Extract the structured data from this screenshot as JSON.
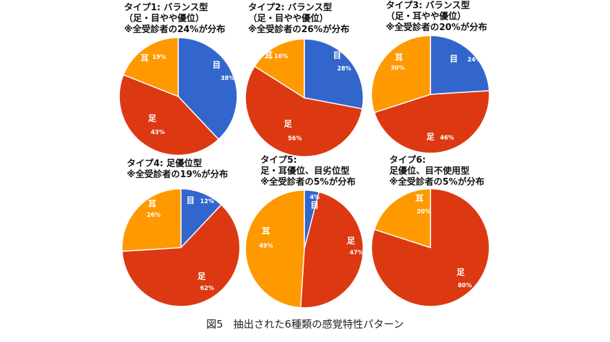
{
  "caption": "図5　抽出された6種類の感覚特性パターン",
  "colors": {
    "eye": "#3366cc",
    "foot": "#dc3912",
    "ear": "#ff9900"
  },
  "chart_data": [
    {
      "type": "pie",
      "title_lines": [
        "タイプ1: バランス型",
        "（足・目やや優位）",
        "※全受診者の24%が分布"
      ],
      "slices": [
        {
          "name": "目",
          "value": 38,
          "label": "38%"
        },
        {
          "name": "足",
          "value": 43,
          "label": "43%"
        },
        {
          "name": "耳",
          "value": 19,
          "label": "19%"
        }
      ]
    },
    {
      "type": "pie",
      "title_lines": [
        "タイプ2: バランス型",
        "（足・目やや優位）",
        "※全受診者の26%が分布"
      ],
      "slices": [
        {
          "name": "目",
          "value": 28,
          "label": "28%"
        },
        {
          "name": "足",
          "value": 56,
          "label": "56%"
        },
        {
          "name": "耳",
          "value": 16,
          "label": "16%"
        }
      ]
    },
    {
      "type": "pie",
      "title_lines": [
        "タイプ3: バランス型",
        "（足・耳やや優位）",
        "※全受診者の20%が分布"
      ],
      "slices": [
        {
          "name": "目",
          "value": 24,
          "label": "24%"
        },
        {
          "name": "足",
          "value": 46,
          "label": "46%"
        },
        {
          "name": "耳",
          "value": 30,
          "label": "30%"
        }
      ]
    },
    {
      "type": "pie",
      "title_lines": [
        "タイプ4: 足優位型",
        "※全受診者の19%が分布"
      ],
      "slices": [
        {
          "name": "目",
          "value": 12,
          "label": "12%"
        },
        {
          "name": "足",
          "value": 62,
          "label": "62%"
        },
        {
          "name": "耳",
          "value": 26,
          "label": "26%"
        }
      ]
    },
    {
      "type": "pie",
      "title_lines": [
        "タイプ5:",
        "足・耳優位、目劣位型",
        "※全受診者の5%が分布"
      ],
      "slices": [
        {
          "name": "目",
          "value": 4,
          "label": "4%"
        },
        {
          "name": "足",
          "value": 47,
          "label": "47%"
        },
        {
          "name": "耳",
          "value": 49,
          "label": "49%"
        }
      ]
    },
    {
      "type": "pie",
      "title_lines": [
        "タイプ6:",
        "足優位、目不使用型",
        "※全受診者の5%が分布"
      ],
      "slices": [
        {
          "name": "目",
          "value": 0,
          "label": ""
        },
        {
          "name": "足",
          "value": 80,
          "label": "80%"
        },
        {
          "name": "耳",
          "value": 20,
          "label": "20%"
        }
      ]
    }
  ]
}
